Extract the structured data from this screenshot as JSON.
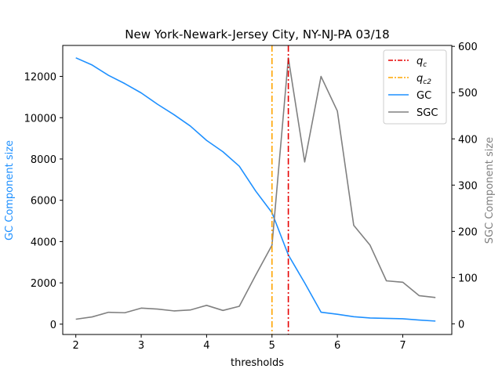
{
  "chart_data": {
    "type": "line",
    "title": "New York-Newark-Jersey City, NY-NJ-PA 03/18",
    "xlabel": "thresholds",
    "ylabel_left": "GC Component size",
    "ylabel_right": "SGC Component size",
    "xlim": [
      1.8,
      7.75
    ],
    "ylim_left": [
      -500,
      13500
    ],
    "ylim_right": [
      -23,
      602
    ],
    "x_ticks": [
      2,
      3,
      4,
      5,
      6,
      7
    ],
    "y_left_ticks": [
      0,
      2000,
      4000,
      6000,
      8000,
      10000,
      12000
    ],
    "y_right_ticks": [
      0,
      100,
      200,
      300,
      400,
      500,
      600
    ],
    "x": [
      2.0,
      2.25,
      2.5,
      2.75,
      3.0,
      3.25,
      3.5,
      3.75,
      4.0,
      4.25,
      4.5,
      4.75,
      5.0,
      5.25,
      5.5,
      5.75,
      6.0,
      6.25,
      6.5,
      6.75,
      7.0,
      7.25,
      7.5
    ],
    "series": [
      {
        "name": "GC",
        "axis": "left",
        "color": "#1e90ff",
        "values": [
          12900,
          12550,
          12050,
          11650,
          11200,
          10650,
          10150,
          9600,
          8900,
          8350,
          7650,
          6450,
          5400,
          3350,
          2000,
          580,
          480,
          360,
          300,
          280,
          260,
          200,
          150
        ]
      },
      {
        "name": "SGC",
        "axis": "right",
        "color": "#808080",
        "values": [
          10,
          15,
          25,
          24,
          34,
          32,
          28,
          30,
          40,
          29,
          38,
          105,
          170,
          575,
          350,
          535,
          460,
          213,
          170,
          93,
          90,
          61,
          57
        ]
      }
    ],
    "vlines": [
      {
        "name": "q_c",
        "x": 5.25,
        "color": "#e60000"
      },
      {
        "name": "q_c2",
        "x": 5.0,
        "color": "#ffa500"
      }
    ],
    "legend": {
      "placement": "top-right",
      "entries": [
        {
          "label_main": "q",
          "label_sub": "c",
          "color": "#e60000",
          "style": "dashdot"
        },
        {
          "label_main": "q",
          "label_sub": "c2",
          "color": "#ffa500",
          "style": "dashdot"
        },
        {
          "label_main": "GC",
          "label_sub": "",
          "color": "#1e90ff",
          "style": "solid"
        },
        {
          "label_main": "SGC",
          "label_sub": "",
          "color": "#808080",
          "style": "solid"
        }
      ]
    },
    "grid": false
  }
}
